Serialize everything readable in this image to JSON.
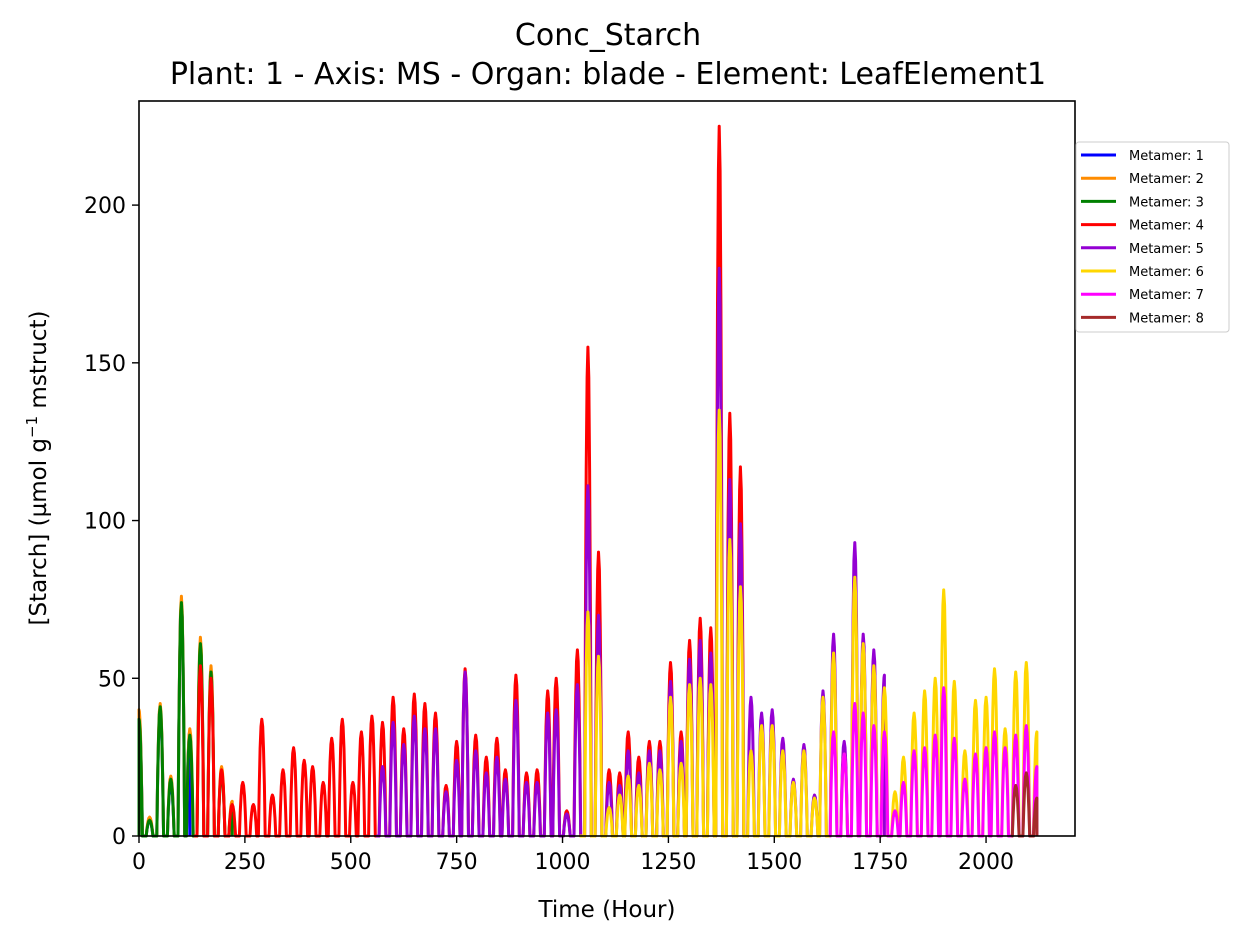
{
  "chart_data": {
    "type": "line",
    "title": "Conc_Starch",
    "subtitle": "Plant: 1 - Axis: MS - Organ: blade - Element: LeafElement1",
    "xlabel": "Time (Hour)",
    "ylabel_prefix": "[Starch] (µmol g",
    "ylabel_sup": "−1",
    "ylabel_suffix": " mstruct)",
    "xlim": [
      0,
      2210
    ],
    "ylim": [
      0,
      233
    ],
    "xticks": [
      0,
      250,
      500,
      750,
      1000,
      1250,
      1500,
      1750,
      2000
    ],
    "yticks": [
      0,
      50,
      100,
      150,
      200
    ],
    "legend_position": "upper-right-outside",
    "series": [
      {
        "name": "Metamer: 1",
        "color": "#0000ff",
        "start": 0,
        "end": 120,
        "peaks": [
          [
            0,
            38
          ],
          [
            25,
            5
          ],
          [
            50,
            40
          ],
          [
            75,
            17
          ],
          [
            100,
            74
          ],
          [
            120,
            33
          ]
        ]
      },
      {
        "name": "Metamer: 2",
        "color": "#ff8c00",
        "start": 0,
        "end": 220,
        "peaks": [
          [
            0,
            40
          ],
          [
            25,
            6
          ],
          [
            50,
            42
          ],
          [
            75,
            19
          ],
          [
            100,
            76
          ],
          [
            120,
            34
          ],
          [
            145,
            63
          ],
          [
            170,
            54
          ],
          [
            195,
            22
          ],
          [
            220,
            11
          ]
        ]
      },
      {
        "name": "Metamer: 3",
        "color": "#008000",
        "start": 0,
        "end": 220,
        "peaks": [
          [
            0,
            37
          ],
          [
            25,
            5
          ],
          [
            50,
            41
          ],
          [
            75,
            18
          ],
          [
            100,
            74
          ],
          [
            120,
            32
          ],
          [
            145,
            61
          ],
          [
            170,
            52
          ],
          [
            195,
            20
          ],
          [
            220,
            9
          ]
        ]
      },
      {
        "name": "Metamer: 4",
        "color": "#ff0000",
        "start": 130,
        "end": 1440,
        "peaks": [
          [
            145,
            54
          ],
          [
            170,
            50
          ],
          [
            195,
            21
          ],
          [
            220,
            10
          ],
          [
            245,
            17
          ],
          [
            270,
            10
          ],
          [
            290,
            37
          ],
          [
            315,
            13
          ],
          [
            340,
            21
          ],
          [
            365,
            28
          ],
          [
            390,
            24
          ],
          [
            410,
            22
          ],
          [
            435,
            17
          ],
          [
            455,
            31
          ],
          [
            480,
            37
          ],
          [
            505,
            17
          ],
          [
            525,
            33
          ],
          [
            550,
            38
          ],
          [
            575,
            36
          ],
          [
            600,
            44
          ],
          [
            625,
            34
          ],
          [
            650,
            45
          ],
          [
            675,
            42
          ],
          [
            700,
            39
          ],
          [
            725,
            16
          ],
          [
            750,
            30
          ],
          [
            770,
            53
          ],
          [
            795,
            32
          ],
          [
            820,
            25
          ],
          [
            845,
            31
          ],
          [
            865,
            21
          ],
          [
            890,
            51
          ],
          [
            915,
            20
          ],
          [
            940,
            21
          ],
          [
            965,
            46
          ],
          [
            985,
            50
          ],
          [
            1010,
            8
          ],
          [
            1035,
            59
          ],
          [
            1060,
            155
          ],
          [
            1085,
            90
          ],
          [
            1110,
            21
          ],
          [
            1135,
            20
          ],
          [
            1155,
            33
          ],
          [
            1180,
            25
          ],
          [
            1205,
            30
          ],
          [
            1230,
            30
          ],
          [
            1255,
            55
          ],
          [
            1280,
            33
          ],
          [
            1300,
            62
          ],
          [
            1325,
            69
          ],
          [
            1350,
            66
          ],
          [
            1370,
            225
          ],
          [
            1395,
            134
          ],
          [
            1420,
            117
          ]
        ]
      },
      {
        "name": "Metamer: 5",
        "color": "#9400d3",
        "start": 560,
        "end": 1760,
        "peaks": [
          [
            575,
            22
          ],
          [
            600,
            36
          ],
          [
            625,
            29
          ],
          [
            650,
            38
          ],
          [
            675,
            34
          ],
          [
            700,
            34
          ],
          [
            725,
            14
          ],
          [
            750,
            24
          ],
          [
            770,
            52
          ],
          [
            795,
            27
          ],
          [
            820,
            20
          ],
          [
            845,
            25
          ],
          [
            865,
            18
          ],
          [
            890,
            43
          ],
          [
            915,
            17
          ],
          [
            940,
            17
          ],
          [
            965,
            39
          ],
          [
            985,
            40
          ],
          [
            1010,
            7
          ],
          [
            1035,
            48
          ],
          [
            1060,
            111
          ],
          [
            1085,
            70
          ],
          [
            1110,
            17
          ],
          [
            1135,
            16
          ],
          [
            1155,
            27
          ],
          [
            1180,
            20
          ],
          [
            1205,
            27
          ],
          [
            1230,
            27
          ],
          [
            1255,
            49
          ],
          [
            1280,
            30
          ],
          [
            1300,
            56
          ],
          [
            1325,
            62
          ],
          [
            1350,
            58
          ],
          [
            1370,
            180
          ],
          [
            1395,
            113
          ],
          [
            1420,
            99
          ],
          [
            1445,
            44
          ],
          [
            1470,
            39
          ],
          [
            1495,
            40
          ],
          [
            1520,
            31
          ],
          [
            1545,
            18
          ],
          [
            1570,
            29
          ],
          [
            1595,
            13
          ],
          [
            1615,
            46
          ],
          [
            1640,
            64
          ],
          [
            1665,
            30
          ],
          [
            1690,
            93
          ],
          [
            1710,
            64
          ],
          [
            1735,
            59
          ],
          [
            1760,
            51
          ]
        ]
      },
      {
        "name": "Metamer: 6",
        "color": "#ffd700",
        "start": 1040,
        "end": 2120,
        "peaks": [
          [
            1060,
            71
          ],
          [
            1085,
            57
          ],
          [
            1110,
            9
          ],
          [
            1135,
            13
          ],
          [
            1155,
            19
          ],
          [
            1180,
            16
          ],
          [
            1205,
            23
          ],
          [
            1230,
            21
          ],
          [
            1255,
            44
          ],
          [
            1280,
            23
          ],
          [
            1300,
            48
          ],
          [
            1325,
            50
          ],
          [
            1350,
            48
          ],
          [
            1370,
            135
          ],
          [
            1395,
            94
          ],
          [
            1420,
            79
          ],
          [
            1445,
            27
          ],
          [
            1470,
            35
          ],
          [
            1495,
            35
          ],
          [
            1520,
            27
          ],
          [
            1545,
            17
          ],
          [
            1570,
            27
          ],
          [
            1595,
            12
          ],
          [
            1615,
            44
          ],
          [
            1640,
            58
          ],
          [
            1665,
            26
          ],
          [
            1690,
            82
          ],
          [
            1710,
            61
          ],
          [
            1735,
            54
          ],
          [
            1760,
            47
          ],
          [
            1785,
            14
          ],
          [
            1805,
            25
          ],
          [
            1830,
            39
          ],
          [
            1855,
            46
          ],
          [
            1880,
            50
          ],
          [
            1900,
            78
          ],
          [
            1925,
            49
          ],
          [
            1950,
            27
          ],
          [
            1975,
            43
          ],
          [
            2000,
            44
          ],
          [
            2020,
            53
          ],
          [
            2045,
            34
          ],
          [
            2070,
            52
          ],
          [
            2095,
            55
          ],
          [
            2120,
            33
          ]
        ]
      },
      {
        "name": "Metamer: 7",
        "color": "#ff00ff",
        "start": 1630,
        "end": 2120,
        "peaks": [
          [
            1640,
            33
          ],
          [
            1665,
            26
          ],
          [
            1690,
            42
          ],
          [
            1710,
            39
          ],
          [
            1735,
            35
          ],
          [
            1760,
            33
          ],
          [
            1785,
            8
          ],
          [
            1805,
            17
          ],
          [
            1830,
            27
          ],
          [
            1855,
            28
          ],
          [
            1880,
            32
          ],
          [
            1900,
            47
          ],
          [
            1925,
            31
          ],
          [
            1950,
            18
          ],
          [
            1975,
            26
          ],
          [
            2000,
            28
          ],
          [
            2020,
            33
          ],
          [
            2045,
            28
          ],
          [
            2070,
            32
          ],
          [
            2095,
            35
          ],
          [
            2120,
            22
          ]
        ]
      },
      {
        "name": "Metamer: 8",
        "color": "#a52a2a",
        "start": 2060,
        "end": 2120,
        "peaks": [
          [
            2070,
            16
          ],
          [
            2095,
            20
          ],
          [
            2120,
            12
          ]
        ]
      }
    ]
  }
}
